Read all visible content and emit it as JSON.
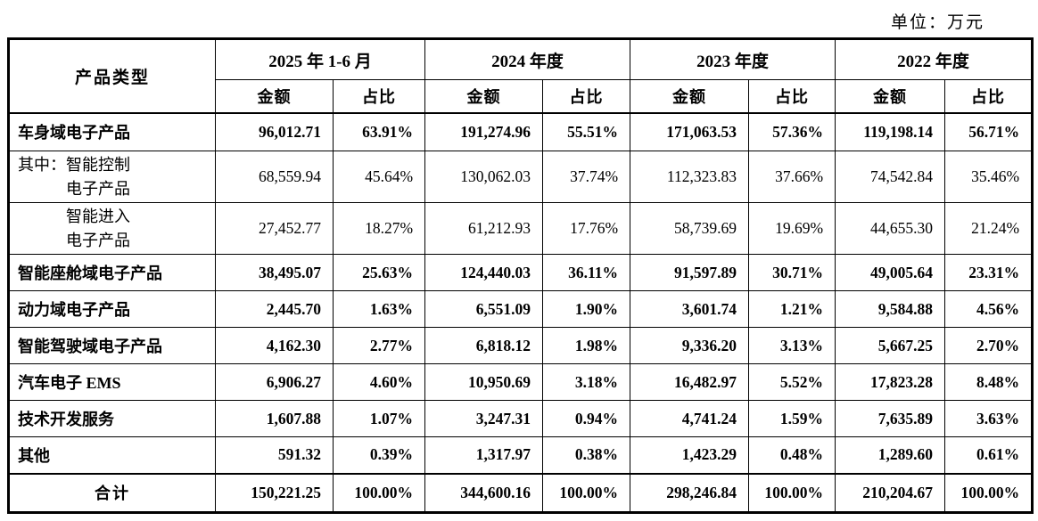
{
  "unit_label": "单位：万元",
  "table": {
    "col_headers": {
      "product_type": "产品类型",
      "amount": "金额",
      "ratio": "占比"
    },
    "periods": [
      {
        "label": "2025 年 1-6 月"
      },
      {
        "label": "2024 年度"
      },
      {
        "label": "2023 年度"
      },
      {
        "label": "2022 年度"
      }
    ],
    "rows": [
      {
        "name": "车身域电子产品",
        "bold": true,
        "cells": [
          "96,012.71",
          "63.91%",
          "191,274.96",
          "55.51%",
          "171,063.53",
          "57.36%",
          "119,198.14",
          "56.71%"
        ]
      },
      {
        "prefix": "其中：",
        "lines": [
          "智能控制",
          "电子产品"
        ],
        "bold": false,
        "cells": [
          "68,559.94",
          "45.64%",
          "130,062.03",
          "37.74%",
          "112,323.83",
          "37.66%",
          "74,542.84",
          "35.46%"
        ]
      },
      {
        "prefix": "",
        "lines": [
          "智能进入",
          "电子产品"
        ],
        "indent": true,
        "bold": false,
        "cells": [
          "27,452.77",
          "18.27%",
          "61,212.93",
          "17.76%",
          "58,739.69",
          "19.69%",
          "44,655.30",
          "21.24%"
        ]
      },
      {
        "name": "智能座舱域电子产品",
        "bold": true,
        "cells": [
          "38,495.07",
          "25.63%",
          "124,440.03",
          "36.11%",
          "91,597.89",
          "30.71%",
          "49,005.64",
          "23.31%"
        ]
      },
      {
        "name": "动力域电子产品",
        "bold": true,
        "cells": [
          "2,445.70",
          "1.63%",
          "6,551.09",
          "1.90%",
          "3,601.74",
          "1.21%",
          "9,584.88",
          "4.56%"
        ]
      },
      {
        "name": "智能驾驶域电子产品",
        "bold": true,
        "cells": [
          "4,162.30",
          "2.77%",
          "6,818.12",
          "1.98%",
          "9,336.20",
          "3.13%",
          "5,667.25",
          "2.70%"
        ]
      },
      {
        "name": "汽车电子 EMS",
        "bold": true,
        "cells": [
          "6,906.27",
          "4.60%",
          "10,950.69",
          "3.18%",
          "16,482.97",
          "5.52%",
          "17,823.28",
          "8.48%"
        ]
      },
      {
        "name": "技术开发服务",
        "bold": true,
        "cells": [
          "1,607.88",
          "1.07%",
          "3,247.31",
          "0.94%",
          "4,741.24",
          "1.59%",
          "7,635.89",
          "3.63%"
        ]
      },
      {
        "name": "其他",
        "bold": true,
        "cells": [
          "591.32",
          "0.39%",
          "1,317.97",
          "0.38%",
          "1,423.29",
          "0.48%",
          "1,289.60",
          "0.61%"
        ]
      },
      {
        "name": "合计",
        "bold": true,
        "total": true,
        "cells": [
          "150,221.25",
          "100.00%",
          "344,600.16",
          "100.00%",
          "298,246.84",
          "100.00%",
          "210,204.67",
          "100.00%"
        ]
      }
    ]
  }
}
